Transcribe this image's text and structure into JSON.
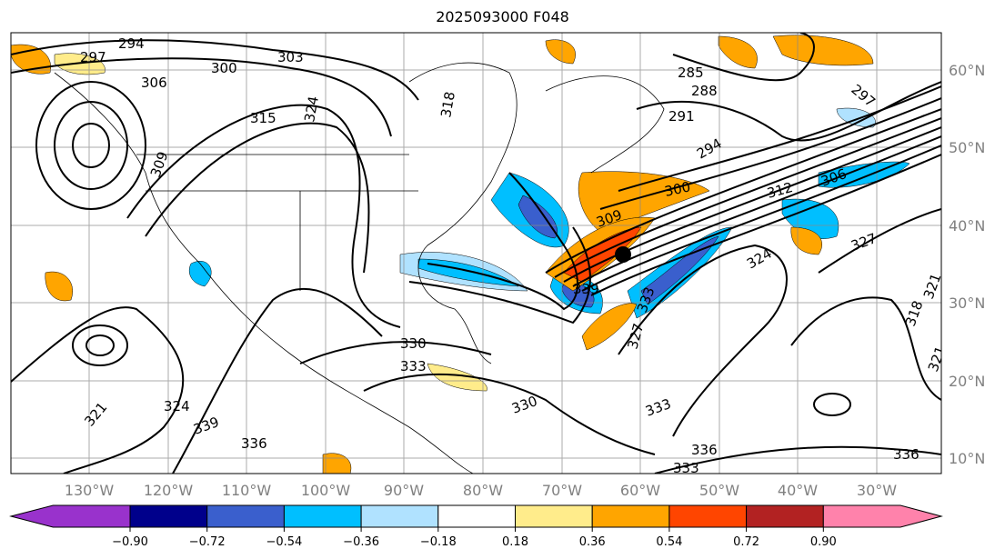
{
  "title": "2025093000 F048",
  "map": {
    "longitude_labels": [
      "130°W",
      "120°W",
      "110°W",
      "100°W",
      "90°W",
      "80°W",
      "70°W",
      "60°W",
      "50°W",
      "40°W",
      "30°W"
    ],
    "latitude_labels": [
      "60°N",
      "50°N",
      "40°N",
      "30°N",
      "20°N",
      "10°N"
    ],
    "contour_labels": [
      "294",
      "297",
      "300",
      "303",
      "306",
      "309",
      "315",
      "324",
      "318",
      "285",
      "288",
      "291",
      "294",
      "297",
      "300",
      "306",
      "312",
      "309",
      "327",
      "324",
      "339",
      "333",
      "327",
      "321",
      "318",
      "321",
      "336",
      "330",
      "333",
      "336",
      "333",
      "330",
      "324",
      "321",
      "339",
      "336",
      "333"
    ],
    "marker": "storm-center-dot"
  },
  "colorbar": {
    "ticks": [
      "−0.90",
      "−0.72",
      "−0.54",
      "−0.36",
      "−0.18",
      "0.18",
      "0.36",
      "0.54",
      "0.72",
      "0.90"
    ],
    "colors": [
      "#9932cc",
      "#00008b",
      "#3a5fcd",
      "#00bfff",
      "#b0e2ff",
      "#ffffff",
      "#ffec8b",
      "#ffa500",
      "#ff4500",
      "#b22222",
      "#ff82ab"
    ]
  }
}
